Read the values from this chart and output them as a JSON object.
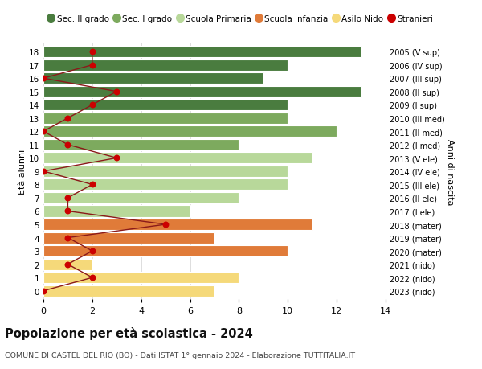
{
  "ages": [
    18,
    17,
    16,
    15,
    14,
    13,
    12,
    11,
    10,
    9,
    8,
    7,
    6,
    5,
    4,
    3,
    2,
    1,
    0
  ],
  "anni_nascita": [
    "2005 (V sup)",
    "2006 (IV sup)",
    "2007 (III sup)",
    "2008 (II sup)",
    "2009 (I sup)",
    "2010 (III med)",
    "2011 (II med)",
    "2012 (I med)",
    "2013 (V ele)",
    "2014 (IV ele)",
    "2015 (III ele)",
    "2016 (II ele)",
    "2017 (I ele)",
    "2018 (mater)",
    "2019 (mater)",
    "2020 (mater)",
    "2021 (nido)",
    "2022 (nido)",
    "2023 (nido)"
  ],
  "bar_values": [
    13,
    10,
    9,
    13,
    10,
    10,
    12,
    8,
    11,
    10,
    10,
    8,
    6,
    11,
    7,
    10,
    2,
    8,
    7
  ],
  "bar_colors": [
    "#4a7c3f",
    "#4a7c3f",
    "#4a7c3f",
    "#4a7c3f",
    "#4a7c3f",
    "#7daa5e",
    "#7daa5e",
    "#7daa5e",
    "#b8d89a",
    "#b8d89a",
    "#b8d89a",
    "#b8d89a",
    "#b8d89a",
    "#e07b39",
    "#e07b39",
    "#e07b39",
    "#f5d97a",
    "#f5d97a",
    "#f5d97a"
  ],
  "stranieri_values": [
    2,
    2,
    0,
    3,
    2,
    1,
    0,
    1,
    3,
    0,
    2,
    1,
    1,
    5,
    1,
    2,
    1,
    2,
    0
  ],
  "legend_labels": [
    "Sec. II grado",
    "Sec. I grado",
    "Scuola Primaria",
    "Scuola Infanzia",
    "Asilo Nido",
    "Stranieri"
  ],
  "legend_colors": [
    "#4a7c3f",
    "#7daa5e",
    "#b8d89a",
    "#e07b39",
    "#f5d97a",
    "#cc0000"
  ],
  "title": "Popolazione per età scolastica - 2024",
  "subtitle": "COMUNE DI CASTEL DEL RIO (BO) - Dati ISTAT 1° gennaio 2024 - Elaborazione TUTTITALIA.IT",
  "ylabel_left": "Età alunni",
  "ylabel_right": "Anni di nascita",
  "xlim": [
    0,
    14
  ],
  "background_color": "#ffffff",
  "grid_color": "#dddddd",
  "stranieri_line_color": "#8b1a1a",
  "stranieri_marker_color": "#cc0000"
}
